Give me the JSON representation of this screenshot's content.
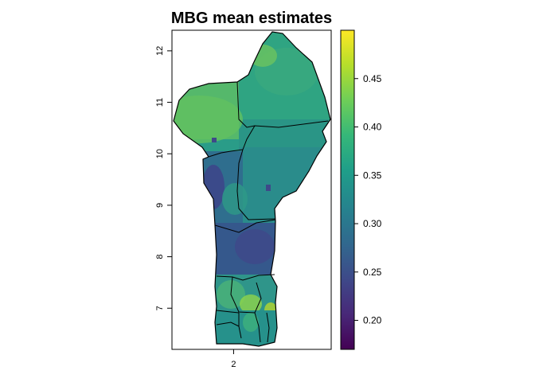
{
  "map": {
    "title": "MBG mean estimates",
    "x_ticks": [
      {
        "label": "2",
        "value": 2
      }
    ],
    "y_ticks": [
      {
        "label": "7",
        "value": 7
      },
      {
        "label": "8",
        "value": 8
      },
      {
        "label": "9",
        "value": 9
      },
      {
        "label": "10",
        "value": 10
      },
      {
        "label": "11",
        "value": 11
      },
      {
        "label": "12",
        "value": 12
      }
    ],
    "x_range": [
      0.8,
      3.9
    ],
    "y_range": [
      6.2,
      12.4
    ],
    "legend": {
      "min": 0.17,
      "max": 0.5,
      "ticks": [
        {
          "label": "0.20",
          "value": 0.2
        },
        {
          "label": "0.25",
          "value": 0.25
        },
        {
          "label": "0.30",
          "value": 0.3
        },
        {
          "label": "0.35",
          "value": 0.35
        },
        {
          "label": "0.40",
          "value": 0.4
        },
        {
          "label": "0.45",
          "value": 0.45
        }
      ],
      "colors": [
        "#440154",
        "#482878",
        "#3e4989",
        "#31688e",
        "#26828e",
        "#1f9e89",
        "#35b779",
        "#6ece58",
        "#b5de2b",
        "#fde725"
      ]
    }
  }
}
